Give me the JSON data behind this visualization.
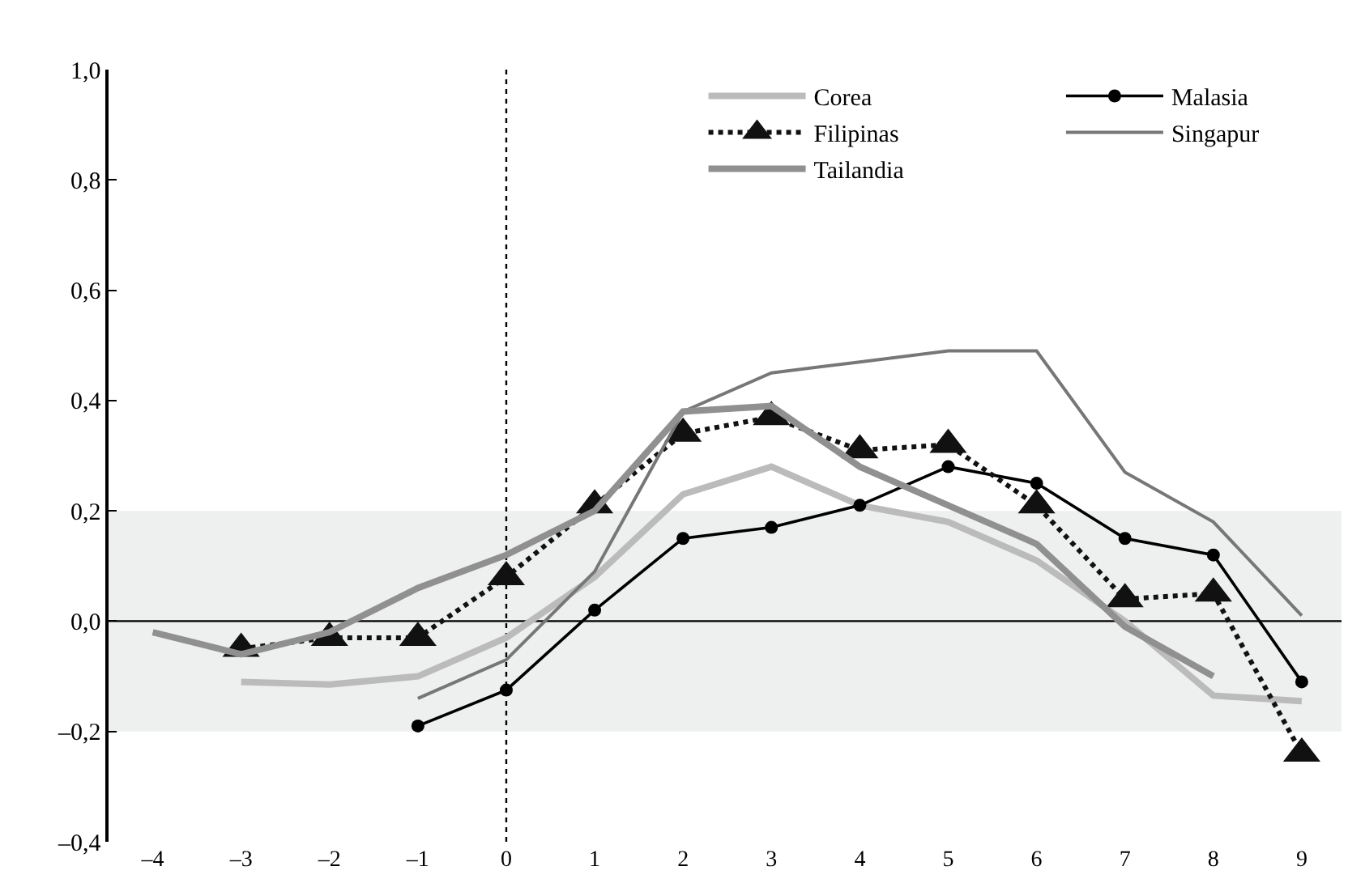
{
  "chart_data": {
    "type": "line",
    "x": [
      -4,
      -3,
      -2,
      -1,
      0,
      1,
      2,
      3,
      4,
      5,
      6,
      7,
      8,
      9
    ],
    "xlim": [
      -4.5,
      9.45
    ],
    "xticks": [
      {
        "value": -4,
        "label": "–4"
      },
      {
        "value": -3,
        "label": "–3"
      },
      {
        "value": -2,
        "label": "–2"
      },
      {
        "value": -1,
        "label": "–1"
      },
      0,
      1,
      2,
      3,
      4,
      5,
      6,
      7,
      8,
      9
    ],
    "ylim": [
      -0.4,
      1.0
    ],
    "yticks": [
      {
        "value": -0.4,
        "label": "–0,4"
      },
      {
        "value": -0.2,
        "label": "–0,2"
      },
      {
        "value": 0,
        "label": "0,0"
      },
      {
        "value": 0.2,
        "label": "0,2"
      },
      {
        "value": 0.4,
        "label": "0,4"
      },
      {
        "value": 0.6,
        "label": "0,6"
      },
      {
        "value": 0.8,
        "label": "0,8"
      },
      {
        "value": 1.0,
        "label": "1,0"
      }
    ],
    "series": [
      {
        "name": "Corea",
        "color": "#bbbbbb",
        "marker": "none",
        "line_style": "solid",
        "values": [
          null,
          -0.11,
          -0.115,
          -0.1,
          -0.03,
          0.08,
          0.23,
          0.28,
          0.21,
          0.18,
          0.11,
          0.0,
          -0.135,
          -0.145
        ]
      },
      {
        "name": "Malasia",
        "color": "#000000",
        "marker": "circle",
        "line_style": "solid",
        "values": [
          null,
          null,
          null,
          -0.19,
          -0.125,
          0.02,
          0.15,
          0.17,
          0.21,
          0.28,
          0.25,
          0.15,
          0.12,
          -0.11
        ]
      },
      {
        "name": "Filipinas",
        "color": "#111111",
        "marker": "triangle",
        "line_style": "dotted",
        "values": [
          null,
          -0.05,
          -0.03,
          -0.03,
          0.08,
          0.21,
          0.34,
          0.37,
          0.31,
          0.32,
          0.21,
          0.04,
          0.05,
          -0.24
        ]
      },
      {
        "name": "Singapur",
        "color": "#777777",
        "marker": "none",
        "line_style": "solid",
        "values": [
          null,
          null,
          null,
          -0.14,
          -0.07,
          0.09,
          0.38,
          0.45,
          0.47,
          0.49,
          0.49,
          0.27,
          0.18,
          0.01
        ]
      },
      {
        "name": "Tailandia",
        "color": "#909090",
        "marker": "none",
        "line_style": "solid",
        "values": [
          -0.02,
          -0.06,
          -0.02,
          0.06,
          0.12,
          0.2,
          0.38,
          0.39,
          0.28,
          0.21,
          0.14,
          -0.01,
          -0.1,
          null
        ]
      }
    ],
    "ref_lines": [
      {
        "axis": "y",
        "value": 0,
        "color": "#000000",
        "line_style": "solid"
      },
      {
        "axis": "x",
        "value": 0,
        "color": "#000000",
        "line_style": "dotted"
      }
    ],
    "bands": [
      {
        "axis": "y",
        "from": -0.2,
        "to": 0.2,
        "color": "#eef0ef"
      }
    ],
    "legend": "top right",
    "grid": false
  }
}
